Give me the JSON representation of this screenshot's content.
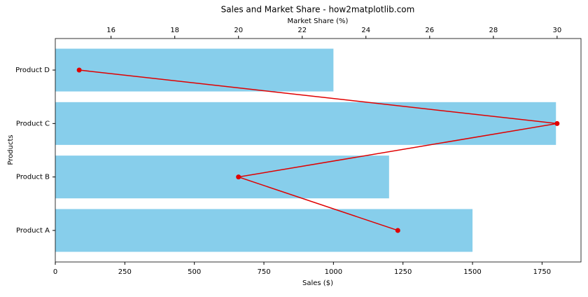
{
  "chart_data": {
    "type": "bar",
    "orientation": "horizontal",
    "title": "Sales and Market Share - how2matplotlib.com",
    "xlabel": "Sales ($)",
    "x2label": "Market Share (%)",
    "ylabel": "Products",
    "categories": [
      "Product A",
      "Product B",
      "Product C",
      "Product D"
    ],
    "series": [
      {
        "values": [
          1500,
          1200,
          1800,
          1000
        ],
        "color": "#87ceeb"
      },
      {
        "values": [
          25,
          20,
          30,
          15
        ],
        "color": "#e00000",
        "axis": "x2",
        "type": "line"
      }
    ],
    "xlim": [
      0,
      1890
    ],
    "xticks": [
      0,
      250,
      500,
      750,
      1000,
      1250,
      1500,
      1750
    ],
    "x2lim": [
      14.25,
      30.75
    ],
    "x2ticks": [
      16,
      18,
      20,
      22,
      24,
      26,
      28,
      30
    ]
  }
}
